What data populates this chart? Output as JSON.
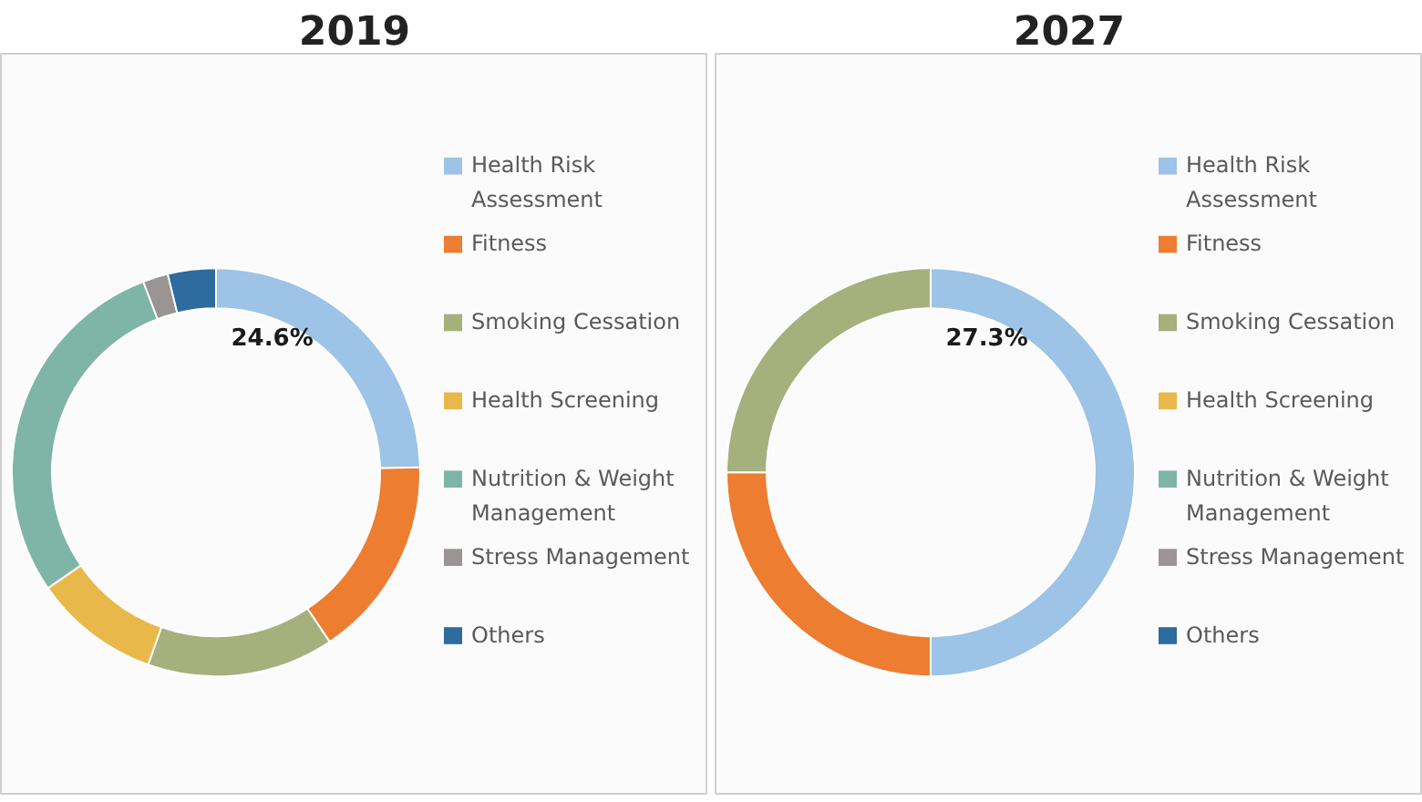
{
  "chart_data": [
    {
      "type": "donut",
      "title": "2019",
      "categories": [
        "Health Risk Assessment",
        "Fitness",
        "Smoking Cessation",
        "Health Screening",
        "Nutrition & Weight Management",
        "Stress Management",
        "Others"
      ],
      "values": [
        24.6,
        16,
        14.8,
        10,
        28.8,
        2,
        3.8
      ],
      "colors": [
        "#9dc3e6",
        "#ed7d31",
        "#a5b07c",
        "#e8b84a",
        "#7fb5a6",
        "#9a9494",
        "#2e6b9e"
      ],
      "value_labels": [
        "24.6%",
        null,
        null,
        null,
        null,
        null,
        null
      ],
      "legend": "right"
    },
    {
      "type": "donut",
      "title": "2027",
      "categories": [
        "Health Risk Assessment",
        "Fitness",
        "Smoking Cessation",
        "Health Screening",
        "Nutrition & Weight Management",
        "Stress Management",
        "Others"
      ],
      "values": [
        27.3,
        13.65,
        13.65,
        0,
        0,
        0,
        0
      ],
      "colors": [
        "#9dc3e6",
        "#ed7d31",
        "#a5b07c",
        "#e8b84a",
        "#7fb5a6",
        "#9a9494",
        "#2e6b9e"
      ],
      "value_labels": [
        "27.3%",
        null,
        null,
        null,
        null,
        null,
        null
      ],
      "legend": "right"
    }
  ]
}
